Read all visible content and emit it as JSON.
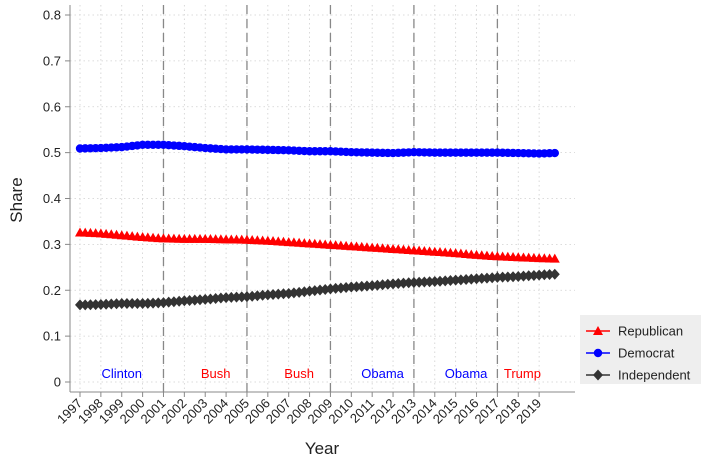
{
  "chart_data": {
    "type": "line",
    "xlabel": "Year",
    "ylabel": "Share",
    "xlim": [
      1997,
      2020
    ],
    "ylim": [
      0,
      0.8
    ],
    "yticks": [
      0,
      0.1,
      0.2,
      0.3,
      0.4,
      0.5,
      0.6,
      0.7,
      0.8
    ],
    "ytick_labels": [
      "0",
      "0.1",
      "0.2",
      "0.3",
      "0.4",
      "0.5",
      "0.6",
      "0.7",
      "0.8"
    ],
    "xticks": [
      1997,
      1998,
      1999,
      2000,
      2001,
      2002,
      2003,
      2004,
      2005,
      2006,
      2007,
      2008,
      2009,
      2010,
      2011,
      2012,
      2013,
      2014,
      2015,
      2016,
      2017,
      2018,
      2019
    ],
    "xtick_labels": [
      "1997",
      "1998",
      "1999",
      "2000",
      "2001",
      "2002",
      "2003",
      "2004",
      "2005",
      "2006",
      "2007",
      "2008",
      "2009",
      "2010",
      "2011",
      "2012",
      "2013",
      "2014",
      "2015",
      "2016",
      "2017",
      "2018",
      "2019"
    ],
    "grid": true,
    "legend_position": "bottom-right",
    "series": [
      {
        "name": "Republican",
        "color": "#ff0000",
        "marker": "triangle",
        "x": [
          1997,
          1998,
          1999,
          2000,
          2001,
          2002,
          2003,
          2004,
          2005,
          2006,
          2007,
          2008,
          2009,
          2010,
          2011,
          2012,
          2013,
          2014,
          2015,
          2016,
          2017,
          2018,
          2019,
          2019.75
        ],
        "values": [
          0.326,
          0.324,
          0.32,
          0.316,
          0.313,
          0.312,
          0.312,
          0.311,
          0.31,
          0.308,
          0.305,
          0.302,
          0.299,
          0.296,
          0.293,
          0.29,
          0.287,
          0.284,
          0.281,
          0.277,
          0.274,
          0.272,
          0.27,
          0.269
        ]
      },
      {
        "name": "Democrat",
        "color": "#0000ff",
        "marker": "circle",
        "x": [
          1997,
          1998,
          1999,
          2000,
          2001,
          2002,
          2003,
          2004,
          2005,
          2006,
          2007,
          2008,
          2009,
          2010,
          2011,
          2012,
          2013,
          2014,
          2015,
          2016,
          2017,
          2018,
          2019,
          2019.75
        ],
        "values": [
          0.509,
          0.51,
          0.512,
          0.517,
          0.517,
          0.514,
          0.51,
          0.507,
          0.507,
          0.506,
          0.505,
          0.503,
          0.503,
          0.501,
          0.5,
          0.499,
          0.501,
          0.5,
          0.5,
          0.5,
          0.5,
          0.499,
          0.498,
          0.499
        ]
      },
      {
        "name": "Independent",
        "color": "#333333",
        "marker": "diamond",
        "x": [
          1997,
          1998,
          1999,
          2000,
          2001,
          2002,
          2003,
          2004,
          2005,
          2006,
          2007,
          2008,
          2009,
          2010,
          2011,
          2012,
          2013,
          2014,
          2015,
          2016,
          2017,
          2018,
          2019,
          2019.75
        ],
        "values": [
          0.168,
          0.169,
          0.171,
          0.171,
          0.173,
          0.177,
          0.18,
          0.184,
          0.186,
          0.19,
          0.193,
          0.198,
          0.203,
          0.207,
          0.21,
          0.214,
          0.217,
          0.219,
          0.222,
          0.225,
          0.228,
          0.23,
          0.233,
          0.235
        ]
      }
    ],
    "vlines": [
      2001,
      2005,
      2009,
      2013,
      2017
    ],
    "annotations": [
      {
        "text": "Clinton",
        "x": 1999.0,
        "color": "#0000ff"
      },
      {
        "text": "Bush",
        "x": 2003.5,
        "color": "#ff0000"
      },
      {
        "text": "Bush",
        "x": 2007.5,
        "color": "#ff0000"
      },
      {
        "text": "Obama",
        "x": 2011.5,
        "color": "#0000ff"
      },
      {
        "text": "Obama",
        "x": 2015.5,
        "color": "#0000ff"
      },
      {
        "text": "Trump",
        "x": 2018.2,
        "color": "#ff0000"
      }
    ]
  }
}
